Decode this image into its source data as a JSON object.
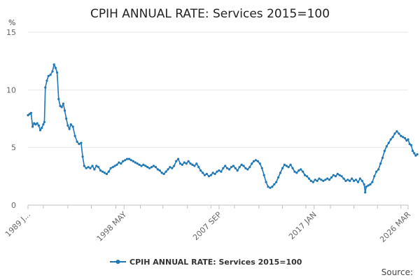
{
  "chart_data": {
    "type": "line",
    "title": "CPIH ANNUAL RATE: Services 2015=100",
    "ylabel": "%",
    "ylim": [
      0,
      15
    ],
    "yticks": [
      0,
      5,
      10,
      15
    ],
    "xlim": [
      1989,
      2026.2
    ],
    "xticks": [
      {
        "value": 1989.0,
        "label": "1989 J..."
      },
      {
        "value": 1998.4,
        "label": "1998 MAY"
      },
      {
        "value": 2007.7,
        "label": "2007 SEP"
      },
      {
        "value": 2017.0,
        "label": "2017 JAN"
      },
      {
        "value": 2026.2,
        "label": "2026 MAR"
      }
    ],
    "series": [
      {
        "name": "CPIH ANNUAL RATE: Services 2015=100",
        "color": "#1f77b4",
        "points": [
          [
            1989.0,
            7.8
          ],
          [
            1989.15,
            7.9
          ],
          [
            1989.3,
            8.0
          ],
          [
            1989.45,
            6.8
          ],
          [
            1989.6,
            7.1
          ],
          [
            1989.75,
            7.0
          ],
          [
            1989.9,
            7.1
          ],
          [
            1990.05,
            6.9
          ],
          [
            1990.2,
            6.5
          ],
          [
            1990.35,
            6.7
          ],
          [
            1990.5,
            7.0
          ],
          [
            1990.6,
            7.2
          ],
          [
            1990.7,
            10.2
          ],
          [
            1990.85,
            10.8
          ],
          [
            1991.0,
            11.2
          ],
          [
            1991.2,
            11.3
          ],
          [
            1991.4,
            11.6
          ],
          [
            1991.55,
            12.2
          ],
          [
            1991.7,
            11.9
          ],
          [
            1991.85,
            11.5
          ],
          [
            1992.0,
            9.2
          ],
          [
            1992.15,
            8.6
          ],
          [
            1992.3,
            8.5
          ],
          [
            1992.45,
            8.8
          ],
          [
            1992.6,
            8.2
          ],
          [
            1992.75,
            7.5
          ],
          [
            1992.9,
            6.9
          ],
          [
            1993.05,
            6.6
          ],
          [
            1993.2,
            7.0
          ],
          [
            1993.4,
            6.8
          ],
          [
            1993.6,
            6.0
          ],
          [
            1993.8,
            5.5
          ],
          [
            1994.0,
            5.3
          ],
          [
            1994.2,
            5.4
          ],
          [
            1994.35,
            4.2
          ],
          [
            1994.5,
            3.4
          ],
          [
            1994.7,
            3.2
          ],
          [
            1994.9,
            3.3
          ],
          [
            1995.1,
            3.2
          ],
          [
            1995.3,
            3.4
          ],
          [
            1995.5,
            3.1
          ],
          [
            1995.7,
            3.4
          ],
          [
            1995.9,
            3.3
          ],
          [
            1996.1,
            3.0
          ],
          [
            1996.3,
            2.9
          ],
          [
            1996.5,
            2.8
          ],
          [
            1996.7,
            2.7
          ],
          [
            1996.9,
            2.9
          ],
          [
            1997.1,
            3.2
          ],
          [
            1997.3,
            3.3
          ],
          [
            1997.5,
            3.4
          ],
          [
            1997.7,
            3.5
          ],
          [
            1997.9,
            3.7
          ],
          [
            1998.1,
            3.6
          ],
          [
            1998.3,
            3.8
          ],
          [
            1998.5,
            3.9
          ],
          [
            1998.7,
            4.0
          ],
          [
            1998.9,
            4.0
          ],
          [
            1999.1,
            3.9
          ],
          [
            1999.3,
            3.8
          ],
          [
            1999.5,
            3.7
          ],
          [
            1999.7,
            3.6
          ],
          [
            1999.9,
            3.5
          ],
          [
            2000.1,
            3.4
          ],
          [
            2000.3,
            3.5
          ],
          [
            2000.5,
            3.4
          ],
          [
            2000.7,
            3.3
          ],
          [
            2000.9,
            3.2
          ],
          [
            2001.1,
            3.3
          ],
          [
            2001.3,
            3.4
          ],
          [
            2001.5,
            3.3
          ],
          [
            2001.7,
            3.1
          ],
          [
            2001.9,
            3.0
          ],
          [
            2002.1,
            2.8
          ],
          [
            2002.3,
            2.7
          ],
          [
            2002.5,
            2.9
          ],
          [
            2002.7,
            3.1
          ],
          [
            2002.9,
            3.3
          ],
          [
            2003.1,
            3.2
          ],
          [
            2003.3,
            3.4
          ],
          [
            2003.5,
            3.8
          ],
          [
            2003.7,
            4.0
          ],
          [
            2003.9,
            3.6
          ],
          [
            2004.1,
            3.5
          ],
          [
            2004.3,
            3.7
          ],
          [
            2004.5,
            3.6
          ],
          [
            2004.7,
            3.8
          ],
          [
            2004.9,
            3.6
          ],
          [
            2005.1,
            3.5
          ],
          [
            2005.3,
            3.4
          ],
          [
            2005.5,
            3.6
          ],
          [
            2005.7,
            3.3
          ],
          [
            2005.9,
            3.0
          ],
          [
            2006.1,
            2.8
          ],
          [
            2006.3,
            2.6
          ],
          [
            2006.5,
            2.7
          ],
          [
            2006.7,
            2.5
          ],
          [
            2006.9,
            2.6
          ],
          [
            2007.1,
            2.8
          ],
          [
            2007.3,
            2.7
          ],
          [
            2007.5,
            2.9
          ],
          [
            2007.7,
            3.0
          ],
          [
            2007.9,
            2.9
          ],
          [
            2008.1,
            3.2
          ],
          [
            2008.3,
            3.4
          ],
          [
            2008.5,
            3.2
          ],
          [
            2008.7,
            3.1
          ],
          [
            2008.9,
            3.3
          ],
          [
            2009.1,
            3.4
          ],
          [
            2009.3,
            3.2
          ],
          [
            2009.5,
            3.0
          ],
          [
            2009.7,
            3.3
          ],
          [
            2009.9,
            3.5
          ],
          [
            2010.1,
            3.4
          ],
          [
            2010.3,
            3.2
          ],
          [
            2010.5,
            3.1
          ],
          [
            2010.7,
            3.3
          ],
          [
            2010.9,
            3.6
          ],
          [
            2011.1,
            3.8
          ],
          [
            2011.3,
            3.9
          ],
          [
            2011.5,
            3.8
          ],
          [
            2011.7,
            3.6
          ],
          [
            2011.9,
            3.2
          ],
          [
            2012.1,
            2.6
          ],
          [
            2012.3,
            2.0
          ],
          [
            2012.5,
            1.6
          ],
          [
            2012.7,
            1.5
          ],
          [
            2012.9,
            1.6
          ],
          [
            2013.1,
            1.8
          ],
          [
            2013.3,
            2.0
          ],
          [
            2013.5,
            2.4
          ],
          [
            2013.7,
            2.8
          ],
          [
            2013.9,
            3.2
          ],
          [
            2014.1,
            3.5
          ],
          [
            2014.3,
            3.4
          ],
          [
            2014.5,
            3.3
          ],
          [
            2014.7,
            3.5
          ],
          [
            2014.9,
            3.2
          ],
          [
            2015.1,
            2.9
          ],
          [
            2015.3,
            2.8
          ],
          [
            2015.5,
            3.0
          ],
          [
            2015.7,
            3.1
          ],
          [
            2015.9,
            2.9
          ],
          [
            2016.1,
            2.6
          ],
          [
            2016.3,
            2.5
          ],
          [
            2016.5,
            2.3
          ],
          [
            2016.7,
            2.1
          ],
          [
            2016.9,
            2.0
          ],
          [
            2017.1,
            2.2
          ],
          [
            2017.3,
            2.1
          ],
          [
            2017.5,
            2.3
          ],
          [
            2017.7,
            2.2
          ],
          [
            2017.9,
            2.1
          ],
          [
            2018.1,
            2.2
          ],
          [
            2018.3,
            2.3
          ],
          [
            2018.5,
            2.2
          ],
          [
            2018.7,
            2.4
          ],
          [
            2018.9,
            2.6
          ],
          [
            2019.1,
            2.5
          ],
          [
            2019.3,
            2.7
          ],
          [
            2019.5,
            2.6
          ],
          [
            2019.7,
            2.5
          ],
          [
            2019.9,
            2.3
          ],
          [
            2020.1,
            2.1
          ],
          [
            2020.3,
            2.2
          ],
          [
            2020.5,
            2.1
          ],
          [
            2020.7,
            2.3
          ],
          [
            2020.9,
            2.1
          ],
          [
            2021.1,
            2.2
          ],
          [
            2021.3,
            2.0
          ],
          [
            2021.5,
            2.3
          ],
          [
            2021.7,
            2.1
          ],
          [
            2021.9,
            1.8
          ],
          [
            2022.0,
            1.1
          ],
          [
            2022.1,
            1.6
          ],
          [
            2022.3,
            1.7
          ],
          [
            2022.5,
            1.8
          ],
          [
            2022.7,
            2.0
          ],
          [
            2022.9,
            2.5
          ],
          [
            2023.1,
            2.9
          ],
          [
            2023.3,
            3.1
          ],
          [
            2023.5,
            3.6
          ],
          [
            2023.7,
            4.1
          ],
          [
            2023.9,
            4.7
          ],
          [
            2024.1,
            5.1
          ],
          [
            2024.3,
            5.4
          ],
          [
            2024.5,
            5.7
          ],
          [
            2024.7,
            5.9
          ],
          [
            2024.9,
            6.2
          ],
          [
            2025.1,
            6.4
          ],
          [
            2025.3,
            6.2
          ],
          [
            2025.5,
            6.0
          ],
          [
            2025.7,
            5.9
          ],
          [
            2025.9,
            5.8
          ],
          [
            2026.05,
            5.6
          ],
          [
            2026.2,
            5.7
          ],
          [
            2026.35,
            5.3
          ],
          [
            2026.5,
            5.2
          ],
          [
            2026.65,
            4.7
          ],
          [
            2026.8,
            4.5
          ],
          [
            2026.95,
            4.3
          ],
          [
            2027.1,
            4.4
          ]
        ]
      }
    ],
    "legend": {
      "label": "CPIH ANNUAL RATE: Services 2015=100",
      "position": "bottom-center"
    },
    "source": "Source:"
  }
}
